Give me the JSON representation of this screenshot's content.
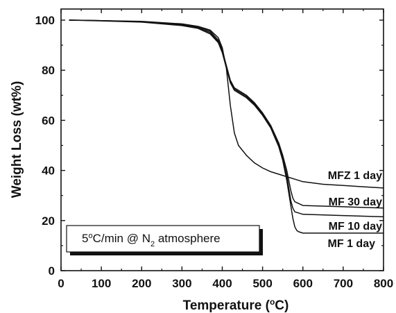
{
  "chart_data": {
    "type": "line",
    "xlabel": "Temperature (°C)",
    "ylabel": "Weight Loss (wt%)",
    "xlim": [
      0,
      800
    ],
    "ylim": [
      0,
      105
    ],
    "xticks": [
      "0",
      "100",
      "200",
      "300",
      "400",
      "500",
      "600",
      "700",
      "800"
    ],
    "yticks": [
      "0",
      "20",
      "40",
      "60",
      "80",
      "100"
    ],
    "grid": false,
    "annotation": {
      "prefix": "5",
      "degree": "o",
      "mid": "C/min @ N",
      "sub": "2",
      "suffix": " atmosphere"
    },
    "series": [
      {
        "name": "MFZ 1 day",
        "x": [
          20,
          100,
          200,
          300,
          340,
          370,
          390,
          400,
          410,
          420,
          430,
          440,
          460,
          480,
          500,
          520,
          540,
          560,
          580,
          600,
          650,
          700,
          750,
          800
        ],
        "y": [
          100,
          99.8,
          99.5,
          98.5,
          97.5,
          96,
          93,
          89,
          81,
          66,
          55,
          50,
          46,
          43,
          41,
          39.5,
          38.5,
          37.5,
          36.5,
          35.5,
          34.5,
          34,
          33.5,
          33
        ]
      },
      {
        "name": "MF 30 day",
        "x": [
          20,
          100,
          200,
          300,
          340,
          370,
          390,
          400,
          410,
          420,
          430,
          440,
          460,
          480,
          500,
          520,
          540,
          550,
          560,
          565,
          570,
          575,
          580,
          600,
          700,
          800
        ],
        "y": [
          100,
          99.8,
          99.4,
          98.3,
          97.4,
          95.5,
          92,
          88,
          82,
          76,
          73,
          72,
          70,
          67,
          63,
          58,
          51,
          46,
          40,
          36,
          32,
          29,
          27.5,
          26,
          25.5,
          25
        ]
      },
      {
        "name": "MF 10 day",
        "x": [
          20,
          100,
          200,
          300,
          340,
          370,
          390,
          400,
          410,
          420,
          430,
          440,
          460,
          480,
          500,
          520,
          540,
          550,
          560,
          565,
          570,
          575,
          580,
          600,
          700,
          800
        ],
        "y": [
          100,
          99.8,
          99.3,
          98,
          97,
          95,
          91.5,
          87.5,
          81.5,
          75.5,
          72.5,
          71.5,
          69.5,
          66.5,
          62.5,
          57.5,
          50,
          45,
          38,
          33,
          28,
          25,
          23.5,
          22.5,
          22,
          21.5
        ]
      },
      {
        "name": "MF 1 day",
        "x": [
          20,
          100,
          200,
          300,
          340,
          370,
          390,
          400,
          410,
          420,
          430,
          440,
          460,
          480,
          500,
          520,
          540,
          550,
          560,
          565,
          570,
          575,
          580,
          585,
          590,
          600,
          700,
          800
        ],
        "y": [
          100,
          99.7,
          99.2,
          97.8,
          96.7,
          94.5,
          91,
          87,
          81,
          75,
          72,
          71,
          69,
          66,
          62,
          57,
          49.5,
          44,
          36,
          31,
          26,
          21,
          17.5,
          16,
          15.5,
          15,
          15,
          15
        ]
      }
    ]
  }
}
